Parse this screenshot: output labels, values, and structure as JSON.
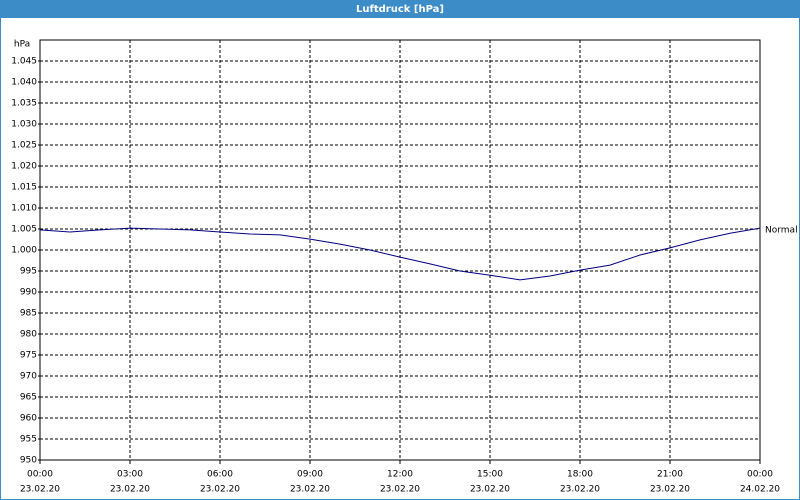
{
  "chart_data": {
    "type": "line",
    "title": "Luftdruck [hPa]",
    "y_label": "hPa",
    "x": [
      0,
      1,
      2,
      3,
      4,
      5,
      6,
      7,
      8,
      9,
      10,
      11,
      12,
      13,
      14,
      15,
      16,
      17,
      18,
      19,
      20,
      21,
      22,
      23,
      24
    ],
    "series": [
      {
        "name": "Normal",
        "color": "#000080",
        "values": [
          1004.8,
          1004.3,
          1004.8,
          1005.2,
          1005.0,
          1004.8,
          1004.3,
          1003.8,
          1003.6,
          1002.6,
          1001.4,
          1000.0,
          998.3,
          996.7,
          995.0,
          994.0,
          992.9,
          993.8,
          995.2,
          996.4,
          998.8,
          1000.5,
          1002.4,
          1004.0,
          1005.2
        ]
      }
    ],
    "xlim": [
      0,
      24
    ],
    "xticks": [
      {
        "value": 0,
        "label": "00:00"
      },
      {
        "value": 3,
        "label": "03:00"
      },
      {
        "value": 6,
        "label": "06:00"
      },
      {
        "value": 9,
        "label": "09:00"
      },
      {
        "value": 12,
        "label": "12:00"
      },
      {
        "value": 15,
        "label": "15:00"
      },
      {
        "value": 18,
        "label": "18:00"
      },
      {
        "value": 21,
        "label": "21:00"
      },
      {
        "value": 24,
        "label": "00:00"
      }
    ],
    "xtick_dates": [
      "23.02.20",
      "23.02.20",
      "23.02.20",
      "23.02.20",
      "23.02.20",
      "23.02.20",
      "23.02.20",
      "23.02.20",
      "24.02.20"
    ],
    "ylim": [
      950,
      1050
    ],
    "yticks": [
      950,
      955,
      960,
      965,
      970,
      975,
      980,
      985,
      990,
      995,
      {
        "value": 1000,
        "label": "1.000"
      },
      {
        "value": 1005,
        "label": "1.005"
      },
      {
        "value": 1010,
        "label": "1.010"
      },
      {
        "value": 1015,
        "label": "1.015"
      },
      {
        "value": 1020,
        "label": "1.020"
      },
      {
        "value": 1025,
        "label": "1.025"
      },
      {
        "value": 1030,
        "label": "1.030"
      },
      {
        "value": 1035,
        "label": "1.035"
      },
      {
        "value": 1040,
        "label": "1.040"
      },
      {
        "value": 1045,
        "label": "1.045"
      }
    ],
    "grid": true
  }
}
